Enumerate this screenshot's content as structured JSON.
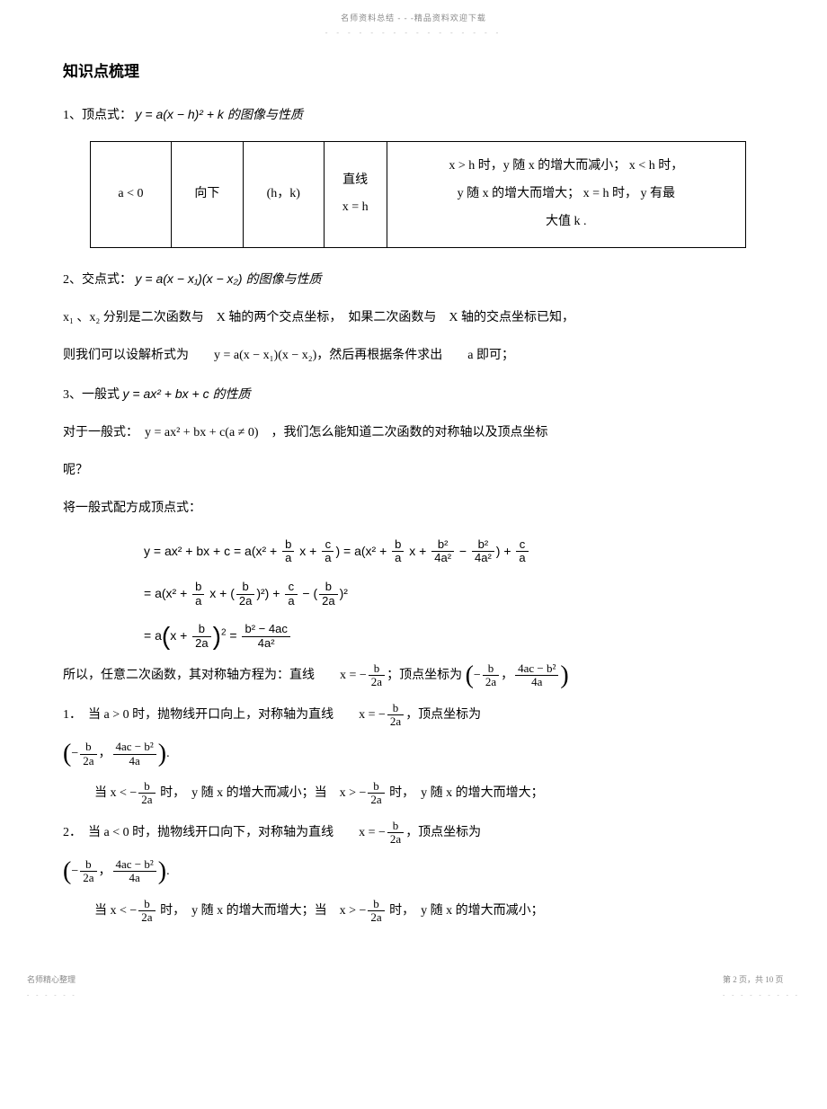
{
  "header": {
    "text": "名师资料总结 - - -精品资料欢迎下载",
    "dots": "- - - - - - - - - - - - - - - -"
  },
  "section_title": "知识点梳理",
  "item1": {
    "label": "1、顶点式：",
    "formula": "y = a(x − h)² + k 的图像与性质"
  },
  "table": {
    "c1": "a < 0",
    "c2": "向下",
    "c3": "(h，k)",
    "c4_line1": "直线",
    "c4_line2": "x = h",
    "c5_line1": "x > h 时，y 随 x 的增大而减小； x < h 时，",
    "c5_line2": "y 随 x 的增大而增大； x = h 时， y 有最",
    "c5_line3": "大值 k ."
  },
  "item2": {
    "label": "2、交点式：",
    "formula": "y = a(x − x₁)(x − x₂) 的图像与性质",
    "p1": "x₁ 、x₂ 分别是二次函数与　X 轴的两个交点坐标，　如果二次函数与　X 轴的交点坐标已知，",
    "p2": "则我们可以设解析式为　　y = a(x − x₁)(x − x₂)，然后再根据条件求出　　a 即可；"
  },
  "item3": {
    "label": "3、一般式",
    "formula": "y = ax² + bx + c 的性质",
    "p1": "对于一般式：　y = ax² + bx + c(a ≠ 0)　，我们怎么能知道二次函数的对称轴以及顶点坐标",
    "p2": "呢？",
    "p3": "将一般式配方成顶点式："
  },
  "derivation": {
    "line1a": "y = ax² + bx + c = a(x² + ",
    "line1b": " x + ",
    "line1c": ") = a(x² + ",
    "line1d": " x + ",
    "line1e": " − ",
    "line1f": ") + ",
    "line2a": "= a(x² + ",
    "line2b": " x + (",
    "line2c": ")²) + ",
    "line2d": " − (",
    "line2e": ")²",
    "line3a": "= a",
    "line3b": "x + ",
    "line3c": " = "
  },
  "conclusion": {
    "text1": "所以，任意二次函数，其对称轴方程为：直线　　x = −",
    "text2": "；顶点坐标为"
  },
  "case1": {
    "p1a": "1．　当 a > 0 时，抛物线开口向上，对称轴为直线　　x = −",
    "p1b": "，顶点坐标为",
    "p2a": "当 x < −",
    "p2b": " 时，　y 随 x 的增大而减小；当　x > −",
    "p2c": " 时，　y 随 x 的增大而增大；"
  },
  "case2": {
    "p1a": "2．　当 a < 0 时，抛物线开口向下，对称轴为直线　　x = −",
    "p1b": "，顶点坐标为",
    "p2a": "当 x < −",
    "p2b": " 时，　y 随 x 的增大而增大；当　x > −",
    "p2c": " 时，　y 随 x 的增大而减小；"
  },
  "footer": {
    "left": "名师精心整理",
    "left_dots": "- - - - - -",
    "right": "第 2 页，共 10 页",
    "right_dots": "- - - - - - - - -"
  }
}
